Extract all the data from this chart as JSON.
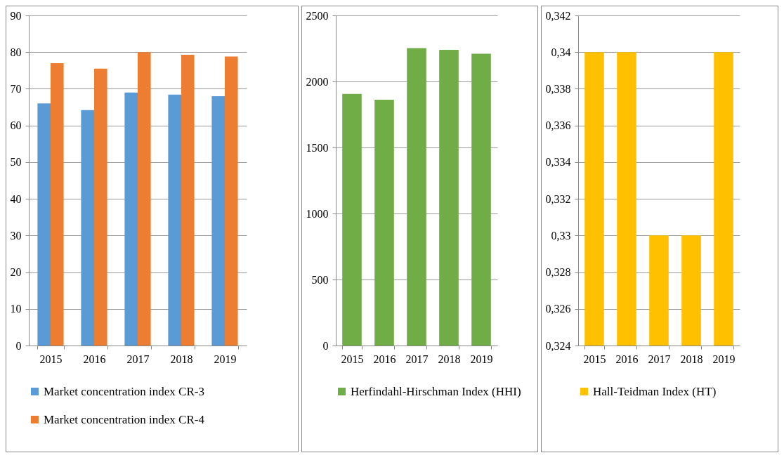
{
  "chart_data": [
    {
      "type": "bar",
      "categories": [
        "2015",
        "2016",
        "2017",
        "2018",
        "2019"
      ],
      "series": [
        {
          "name": "Market concentration index CR-3",
          "color": "#5b9bd5",
          "values": [
            66,
            64.2,
            69,
            68.4,
            68
          ]
        },
        {
          "name": "Market concentration index CR-4",
          "color": "#ed7d31",
          "values": [
            77,
            75.5,
            80,
            79.3,
            78.8
          ]
        }
      ],
      "ylim": [
        0,
        90
      ],
      "yticks": [
        0,
        10,
        20,
        30,
        40,
        50,
        60,
        70,
        80,
        90
      ],
      "grid": "y",
      "legend": "bottom"
    },
    {
      "type": "bar",
      "categories": [
        "2015",
        "2016",
        "2017",
        "2018",
        "2019"
      ],
      "series": [
        {
          "name": "Herfindahl-Hirschman Index (HHI)",
          "color": "#70ad47",
          "values": [
            1906,
            1862,
            2253,
            2239,
            2210
          ]
        }
      ],
      "ylim": [
        0,
        2500
      ],
      "yticks": [
        0,
        500,
        1000,
        1500,
        2000,
        2500
      ],
      "grid": "y",
      "legend": "bottom"
    },
    {
      "type": "bar",
      "categories": [
        "2015",
        "2016",
        "2017",
        "2018",
        "2019"
      ],
      "series": [
        {
          "name": "Hall-Teidman Index (HT)",
          "color": "#ffc000",
          "values": [
            0.34,
            0.34,
            0.33,
            0.33,
            0.34
          ]
        }
      ],
      "ylim": [
        0.324,
        0.342
      ],
      "yticks": [
        {
          "value": 0.324,
          "label": "0,324"
        },
        {
          "value": 0.326,
          "label": "0,326"
        },
        {
          "value": 0.328,
          "label": "0,328"
        },
        {
          "value": 0.33,
          "label": "0,33"
        },
        {
          "value": 0.332,
          "label": "0,332"
        },
        {
          "value": 0.334,
          "label": "0,334"
        },
        {
          "value": 0.336,
          "label": "0,336"
        },
        {
          "value": 0.338,
          "label": "0,338"
        },
        {
          "value": 0.34,
          "label": "0,34"
        },
        {
          "value": 0.342,
          "label": "0,342"
        }
      ],
      "grid": "y",
      "legend": "bottom"
    }
  ]
}
